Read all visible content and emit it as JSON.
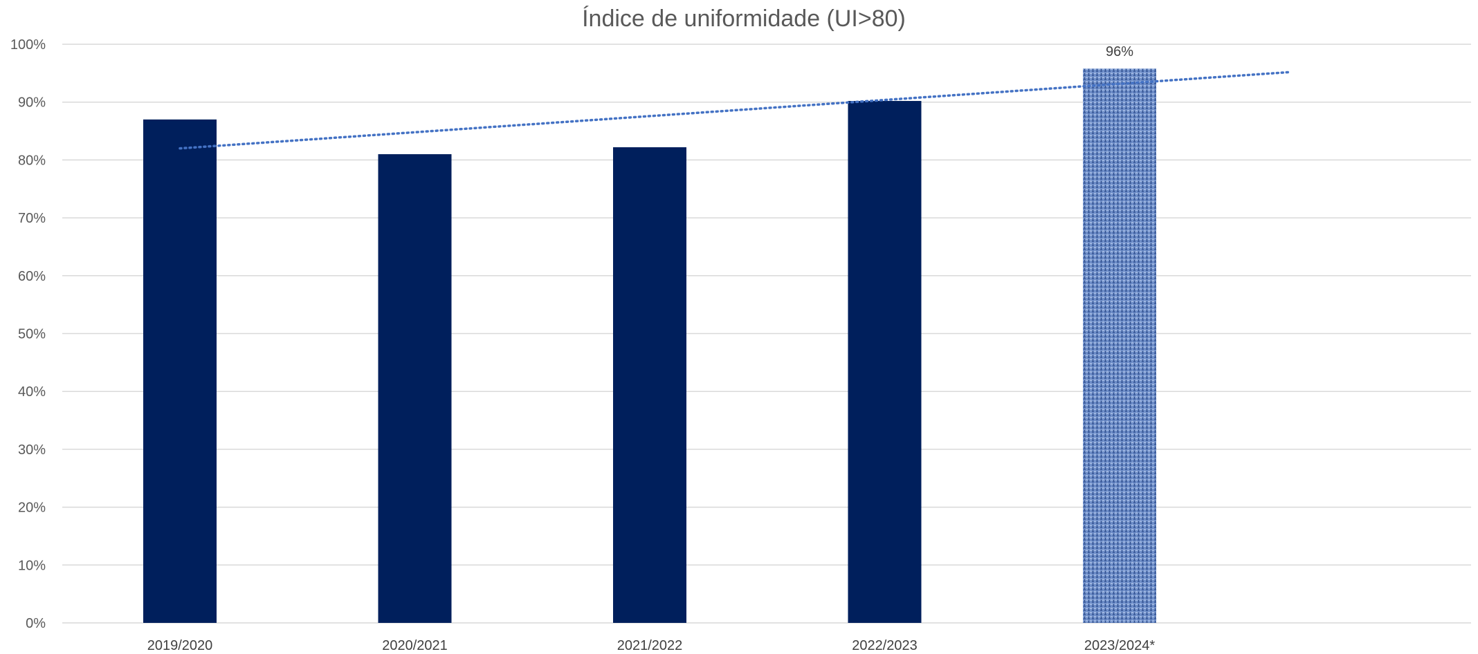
{
  "chart_data": {
    "type": "bar",
    "title": "Índice de uniformidade (UI>80)",
    "categories": [
      "2019/2020",
      "2020/2021",
      "2021/2022",
      "2022/2023",
      "2023/2024*"
    ],
    "values": [
      87,
      81,
      82.2,
      90.2,
      95.8
    ],
    "data_labels": [
      "",
      "",
      "",
      "",
      "96%"
    ],
    "y_tick_labels": [
      "0%",
      "10%",
      "20%",
      "30%",
      "40%",
      "50%",
      "60%",
      "70%",
      "80%",
      "90%",
      "100%"
    ],
    "ylim": [
      0,
      100
    ],
    "grid": true,
    "legend": "none",
    "bar_color": "#001f5c",
    "highlight_bar_color": "#6f8fc9",
    "trendline": {
      "type": "linear",
      "style": "dotted",
      "color": "#4472c4",
      "start_value": 82,
      "end_value": 95.2
    }
  }
}
